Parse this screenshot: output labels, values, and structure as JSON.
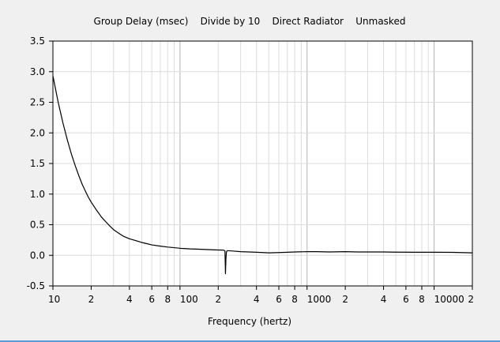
{
  "chart_data": {
    "type": "line",
    "title": "Group Delay (msec)    Divide by 10    Direct Radiator    Unmasked",
    "xlabel": "Frequency (hertz)",
    "ylabel": "",
    "x_scale": "log",
    "xlim": [
      10,
      20000
    ],
    "ylim": [
      -0.5,
      3.5
    ],
    "grid": true,
    "legend": "none",
    "y_ticks": [
      {
        "value": 3.5,
        "label": "3.5"
      },
      {
        "value": 3.0,
        "label": "3.0"
      },
      {
        "value": 2.5,
        "label": "2.5"
      },
      {
        "value": 2.0,
        "label": "2.0"
      },
      {
        "value": 1.5,
        "label": "1.5"
      },
      {
        "value": 1.0,
        "label": "1.0"
      },
      {
        "value": 0.5,
        "label": "0.5"
      },
      {
        "value": 0.0,
        "label": "0.0"
      },
      {
        "value": -0.5,
        "label": "-0.5"
      }
    ],
    "x_ticks": [
      {
        "value": 10,
        "label": "10"
      },
      {
        "value": 20,
        "label": "2"
      },
      {
        "value": 40,
        "label": "4"
      },
      {
        "value": 60,
        "label": "6"
      },
      {
        "value": 80,
        "label": "8"
      },
      {
        "value": 100,
        "label": "100"
      },
      {
        "value": 200,
        "label": "2"
      },
      {
        "value": 400,
        "label": "4"
      },
      {
        "value": 600,
        "label": "6"
      },
      {
        "value": 800,
        "label": "8"
      },
      {
        "value": 1000,
        "label": "1000"
      },
      {
        "value": 2000,
        "label": "2"
      },
      {
        "value": 4000,
        "label": "4"
      },
      {
        "value": 6000,
        "label": "6"
      },
      {
        "value": 8000,
        "label": "8"
      },
      {
        "value": 10000,
        "label": "10000"
      },
      {
        "value": 20000,
        "label": "2"
      }
    ],
    "series": [
      {
        "color": "#000000",
        "x": [
          10,
          11,
          12,
          13,
          14,
          15,
          16,
          17,
          18,
          19,
          20,
          22,
          24,
          26,
          28,
          30,
          33,
          36,
          40,
          45,
          50,
          55,
          60,
          70,
          80,
          90,
          100,
          120,
          140,
          160,
          180,
          200,
          215,
          222,
          226,
          228,
          230,
          232,
          234,
          236,
          240,
          260,
          300,
          350,
          400,
          450,
          500,
          600,
          700,
          800,
          1000,
          1200,
          1500,
          2000,
          2500,
          3000,
          4000,
          5000,
          7000,
          10000,
          14000,
          20000
        ],
        "values": [
          2.93,
          2.5,
          2.16,
          1.88,
          1.65,
          1.46,
          1.3,
          1.16,
          1.05,
          0.95,
          0.87,
          0.74,
          0.63,
          0.55,
          0.48,
          0.42,
          0.36,
          0.31,
          0.27,
          0.24,
          0.21,
          0.19,
          0.17,
          0.15,
          0.135,
          0.125,
          0.115,
          0.105,
          0.1,
          0.095,
          0.09,
          0.087,
          0.085,
          0.083,
          0.07,
          -0.3,
          -0.05,
          0.05,
          0.07,
          0.075,
          0.075,
          0.07,
          0.06,
          0.055,
          0.05,
          0.045,
          0.04,
          0.045,
          0.05,
          0.055,
          0.06,
          0.06,
          0.055,
          0.06,
          0.055,
          0.055,
          0.055,
          0.052,
          0.05,
          0.05,
          0.048,
          0.04
        ]
      }
    ]
  }
}
